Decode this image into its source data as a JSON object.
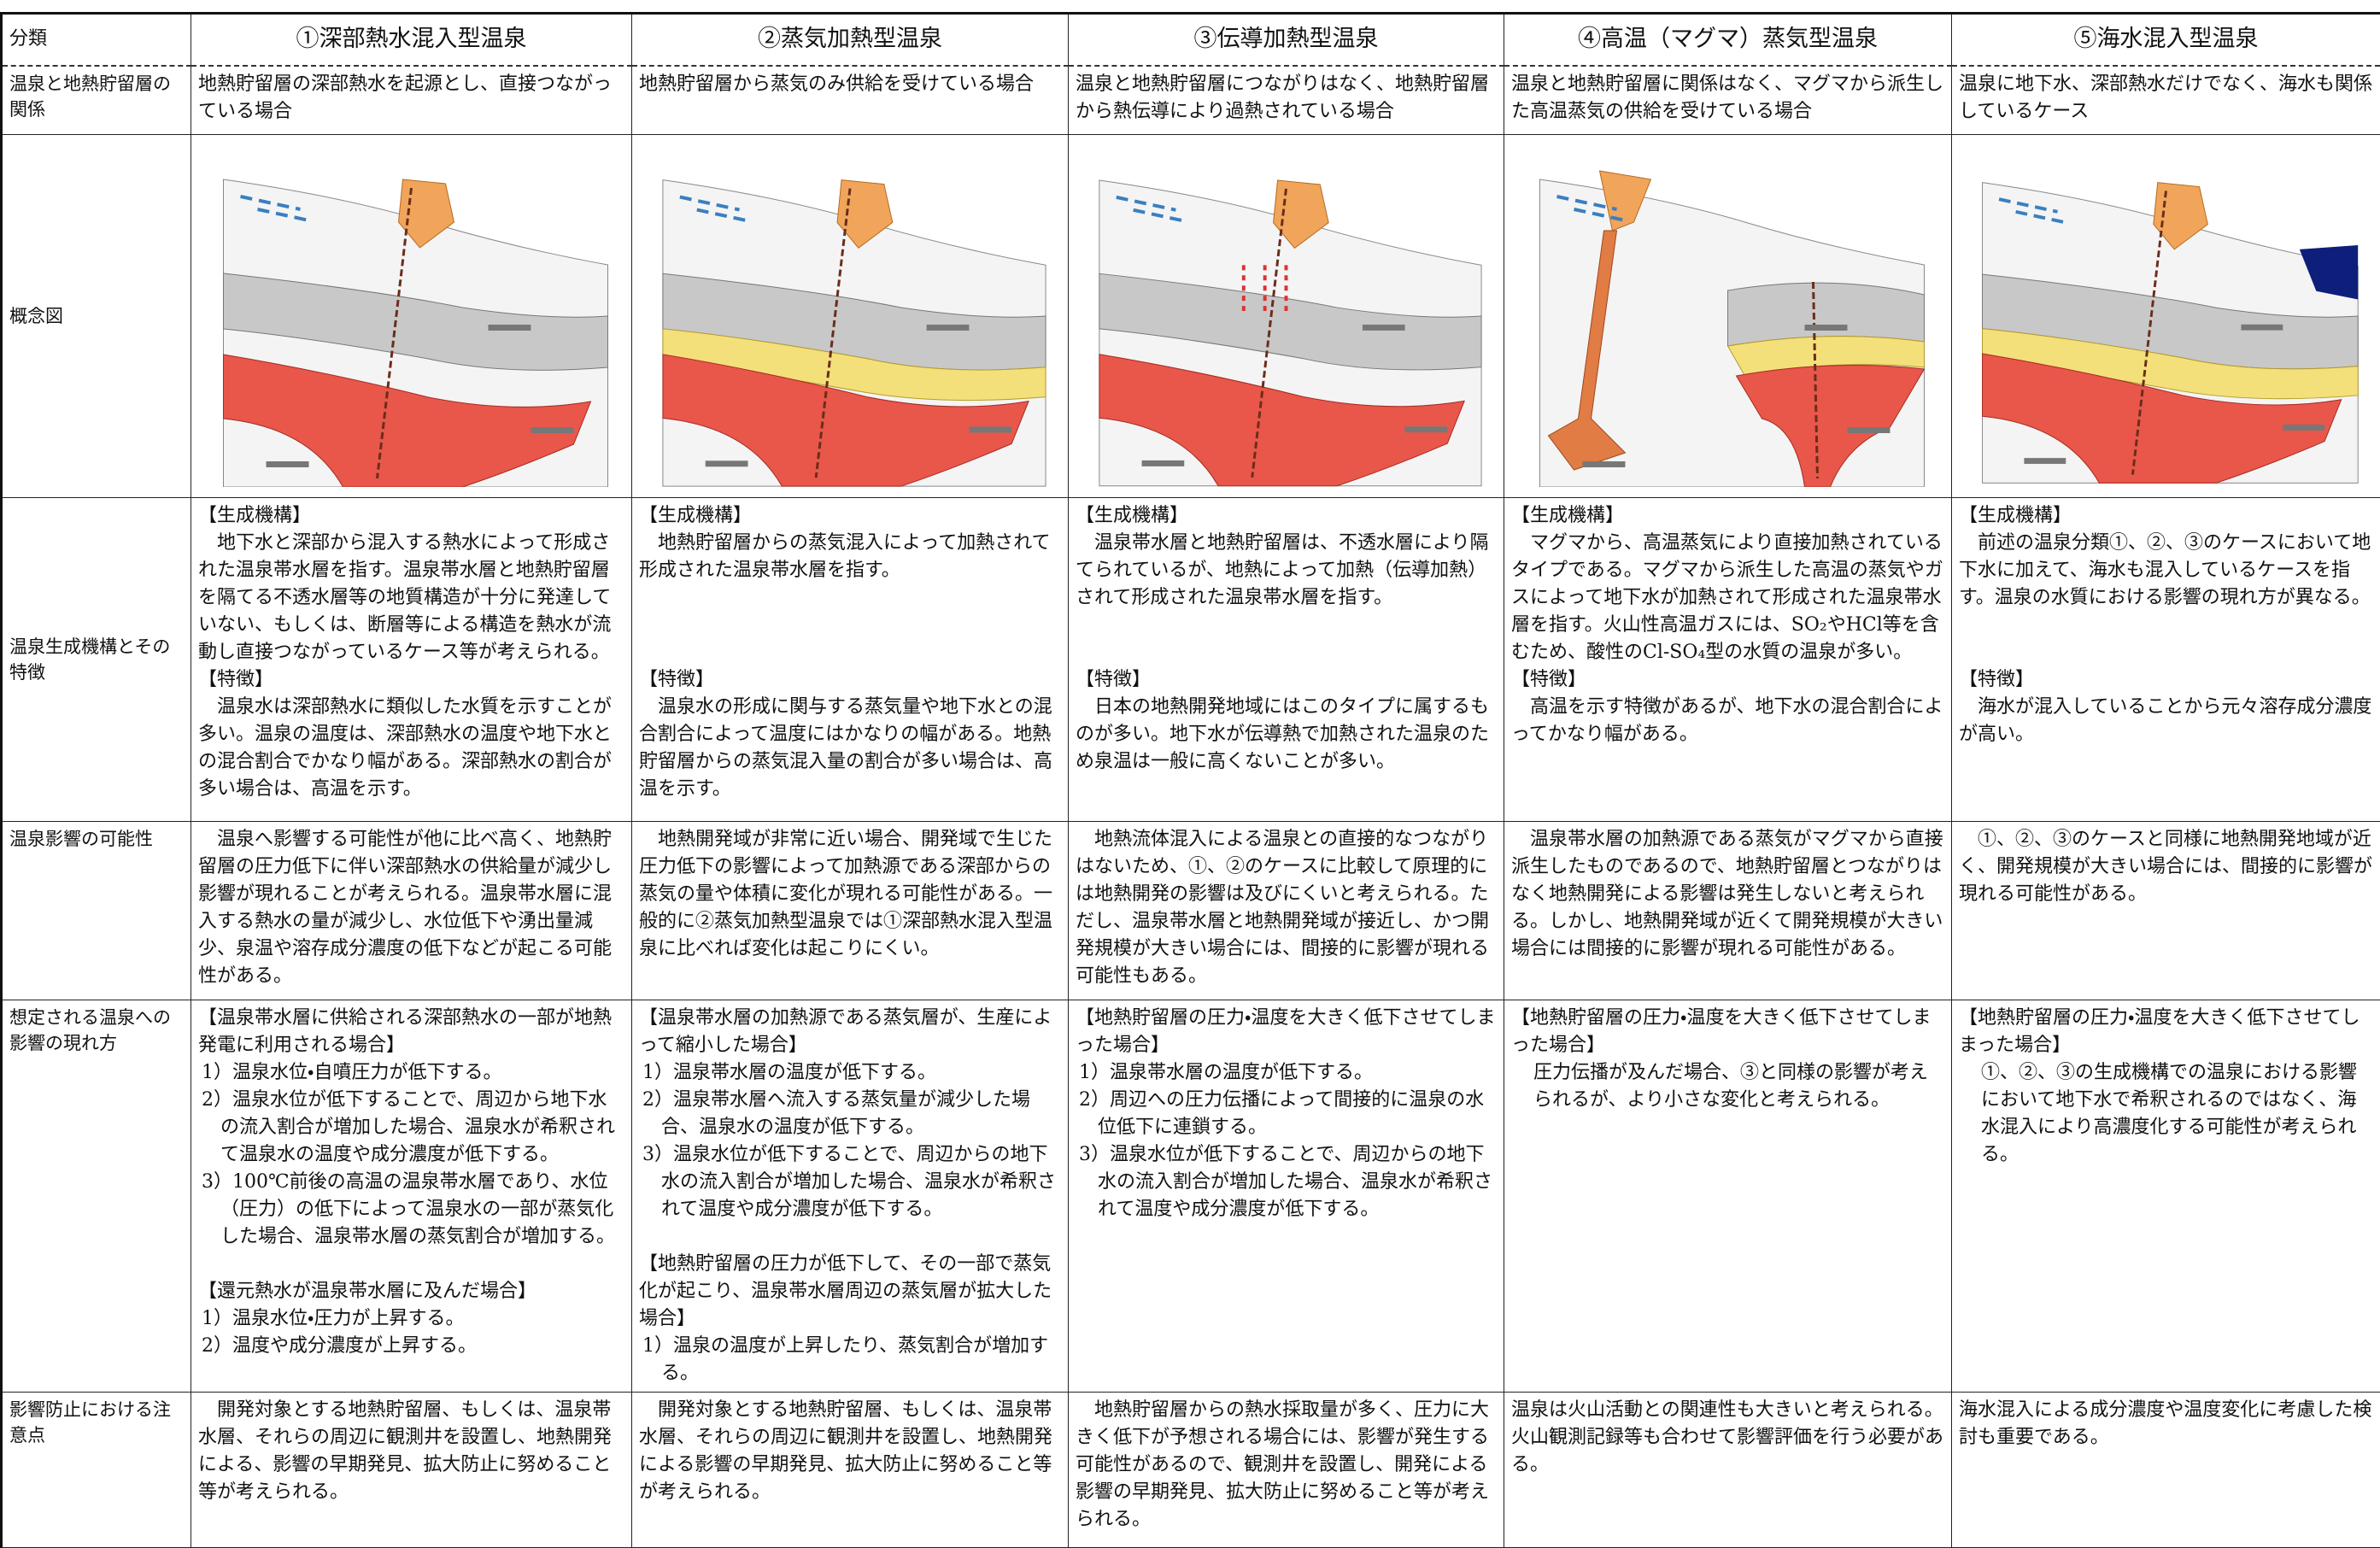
{
  "table": {
    "header": [
      "分類",
      "①深部熱水混入型温泉",
      "②蒸気加熱型温泉",
      "③伝導加熱型温泉",
      "④高温（マグマ）蒸気型温泉",
      "⑤海水混入型温泉"
    ],
    "rows": [
      {
        "label": "温泉と地熱貯留層の関係",
        "cells": [
          "地熱貯留層の深部熱水を起源とし、直接つながっている場合",
          "地熱貯留層から蒸気のみ供給を受けている場合",
          "温泉と地熱貯留層につながりはなく、地熱貯留層から熱伝導により過熱されている場合",
          "温泉と地熱貯留層に関係はなく、マグマから派生した高温蒸気の供給を受けている場合",
          "温泉に地下水、深部熱水だけでなく、海水も関係しているケース"
        ]
      },
      {
        "label": "概念図"
      },
      {
        "label": "温泉生成機構とその特徴",
        "cells": [
          {
            "mechanism_heading": "【生成機構】",
            "mechanism": "　地下水と深部から混入する熱水によって形成された温泉帯水層を指す。温泉帯水層と地熱貯留層を隔てる不透水層等の地質構造が十分に発達していない、もしくは、断層等による構造を熱水が流動し直接つながっているケース等が考えられる。",
            "feature_heading": "【特徴】",
            "feature": "　温泉水は深部熱水に類似した水質を示すことが多い。温泉の温度は、深部熱水の温度や地下水との混合割合でかなり幅がある。深部熱水の割合が多い場合は、高温を示す。"
          },
          {
            "mechanism_heading": "【生成機構】",
            "mechanism": "　地熱貯留層からの蒸気混入によって加熱されて形成された温泉帯水層を指す。",
            "feature_heading": "【特徴】",
            "feature": "　温泉水の形成に関与する蒸気量や地下水との混合割合によって温度にはかなりの幅がある。地熱貯留層からの蒸気混入量の割合が多い場合は、高温を示す。"
          },
          {
            "mechanism_heading": "【生成機構】",
            "mechanism": "　温泉帯水層と地熱貯留層は、不透水層により隔てられているが、地熱によって加熱（伝導加熱）されて形成された温泉帯水層を指す。",
            "feature_heading": "【特徴】",
            "feature": "　日本の地熱開発地域にはこのタイプに属するものが多い。地下水が伝導熱で加熱された温泉のため泉温は一般に高くないことが多い。"
          },
          {
            "mechanism_heading": "【生成機構】",
            "mechanism": "　マグマから、高温蒸気により直接加熱されているタイプである。マグマから派生した高温の蒸気やガスによって地下水が加熱されて形成された温泉帯水層を指す。火山性高温ガスには、SO₂やHCl等を含むため、酸性のCl-SO₄型の水質の温泉が多い。",
            "feature_heading": "【特徴】",
            "feature": "　高温を示す特徴があるが、地下水の混合割合によってかなり幅がある。"
          },
          {
            "mechanism_heading": "【生成機構】",
            "mechanism": "　前述の温泉分類①、②、③のケースにおいて地下水に加えて、海水も混入しているケースを指す。温泉の水質における影響の現れ方が異なる。",
            "feature_heading": "【特徴】",
            "feature": "　海水が混入していることから元々溶存成分濃度が高い。"
          }
        ]
      },
      {
        "label": "温泉影響の可能性",
        "cells": [
          "　温泉へ影響する可能性が他に比べ高く、地熱貯留層の圧力低下に伴い深部熱水の供給量が減少し影響が現れることが考えられる。温泉帯水層に混入する熱水の量が減少し、水位低下や湧出量減少、泉温や溶存成分濃度の低下などが起こる可能性がある。",
          "　地熱開発域が非常に近い場合、開発域で生じた圧力低下の影響によって加熱源である深部からの蒸気の量や体積に変化が現れる可能性がある。一般的に②蒸気加熱型温泉では①深部熱水混入型温泉に比べれば変化は起こりにくい。",
          "　地熱流体混入による温泉との直接的なつながりはないため、①、②のケースに比較して原理的には地熱開発の影響は及びにくいと考えられる。ただし、温泉帯水層と地熱開発域が接近し、かつ開発規模が大きい場合には、間接的に影響が現れる可能性もある。",
          "　温泉帯水層の加熱源である蒸気がマグマから直接派生したものであるので、地熱貯留層とつながりはなく地熱開発による影響は発生しないと考えられる。しかし、地熱開発域が近くて開発規模が大きい場合には間接的に影響が現れる可能性がある。",
          "　①、②、③のケースと同様に地熱開発地域が近く、開発規模が大きい場合には、間接的に影響が現れる可能性がある。"
        ]
      },
      {
        "label": "想定される温泉への影響の現れ方",
        "cells": [
          {
            "blocks": [
              {
                "heading": "【温泉帯水層に供給される深部熱水の一部が地熱発電に利用される場合】",
                "items": [
                  "1）温泉水位・自噴圧力が低下する。",
                  "2）温泉水位が低下することで、周辺から地下水の流入割合が増加した場合、温泉水が希釈されて温泉水の温度や成分濃度が低下する。",
                  "3）100℃前後の高温の温泉帯水層であり、水位（圧力）の低下によって温泉水の一部が蒸気化した場合、温泉帯水層の蒸気割合が増加する。"
                ]
              },
              {
                "heading": "【還元熱水が温泉帯水層に及んだ場合】",
                "items": [
                  "1）温泉水位・圧力が上昇する。",
                  "2）温度や成分濃度が上昇する。"
                ]
              }
            ]
          },
          {
            "blocks": [
              {
                "heading": "【温泉帯水層の加熱源である蒸気層が、生産によって縮小した場合】",
                "items": [
                  "1）温泉帯水層の温度が低下する。",
                  "2）温泉帯水層へ流入する蒸気量が減少した場合、温泉水の温度が低下する。",
                  "3）温泉水位が低下することで、周辺からの地下水の流入割合が増加した場合、温泉水が希釈されて温度や成分濃度が低下する。"
                ]
              },
              {
                "heading": "【地熱貯留層の圧力が低下して、その一部で蒸気化が起こり、温泉帯水層周辺の蒸気層が拡大した場合】",
                "items": [
                  "1）温泉の温度が上昇したり、蒸気割合が増加する。"
                ]
              }
            ]
          },
          {
            "blocks": [
              {
                "heading": "【地熱貯留層の圧力・温度を大きく低下させてしまった場合】",
                "items": [
                  "1）温泉帯水層の温度が低下する。",
                  "2）周辺への圧力伝播によって間接的に温泉の水位低下に連鎖する。",
                  "3）温泉水位が低下することで、周辺からの地下水の流入割合が増加した場合、温泉水が希釈されて温度や成分濃度が低下する。"
                ]
              }
            ]
          },
          {
            "blocks": [
              {
                "heading": "【地熱貯留層の圧力・温度を大きく低下させてしまった場合】",
                "items": [
                  "　圧力伝播が及んだ場合、③と同様の影響が考えられるが、より小さな変化と考えられる。"
                ]
              }
            ]
          },
          {
            "blocks": [
              {
                "heading": "【地熱貯留層の圧力・温度を大きく低下させてしまった場合】",
                "items": [
                  "　①、②、③の生成機構での温泉における影響において地下水で希釈されるのではなく、海水混入により高濃度化する可能性が考えられる。"
                ]
              }
            ]
          }
        ]
      },
      {
        "label": "影響防止における注意点",
        "cells": [
          "　開発対象とする地熱貯留層、もしくは、温泉帯水層、それらの周辺に観測井を設置し、地熱開発による、影響の早期発見、拡大防止に努めること等が考えられる。",
          "　開発対象とする地熱貯留層、もしくは、温泉帯水層、それらの周辺に観測井を設置し、地熱開発による影響の早期発見、拡大防止に努めること等が考えられる。",
          "　地熱貯留層からの熱水採取量が多く、圧力に大きく低下が予想される場合には、影響が発生する可能性があるので、観測井を設置し、開発による影響の早期発見、拡大防止に努めること等が考えられる。",
          "温泉は火山活動との関連性も大きいと考えられる。火山観測記録等も合わせて影響評価を行う必要がある。",
          "海水混入による成分濃度や温度変化に考慮した検討も重要である。"
        ]
      }
    ]
  }
}
